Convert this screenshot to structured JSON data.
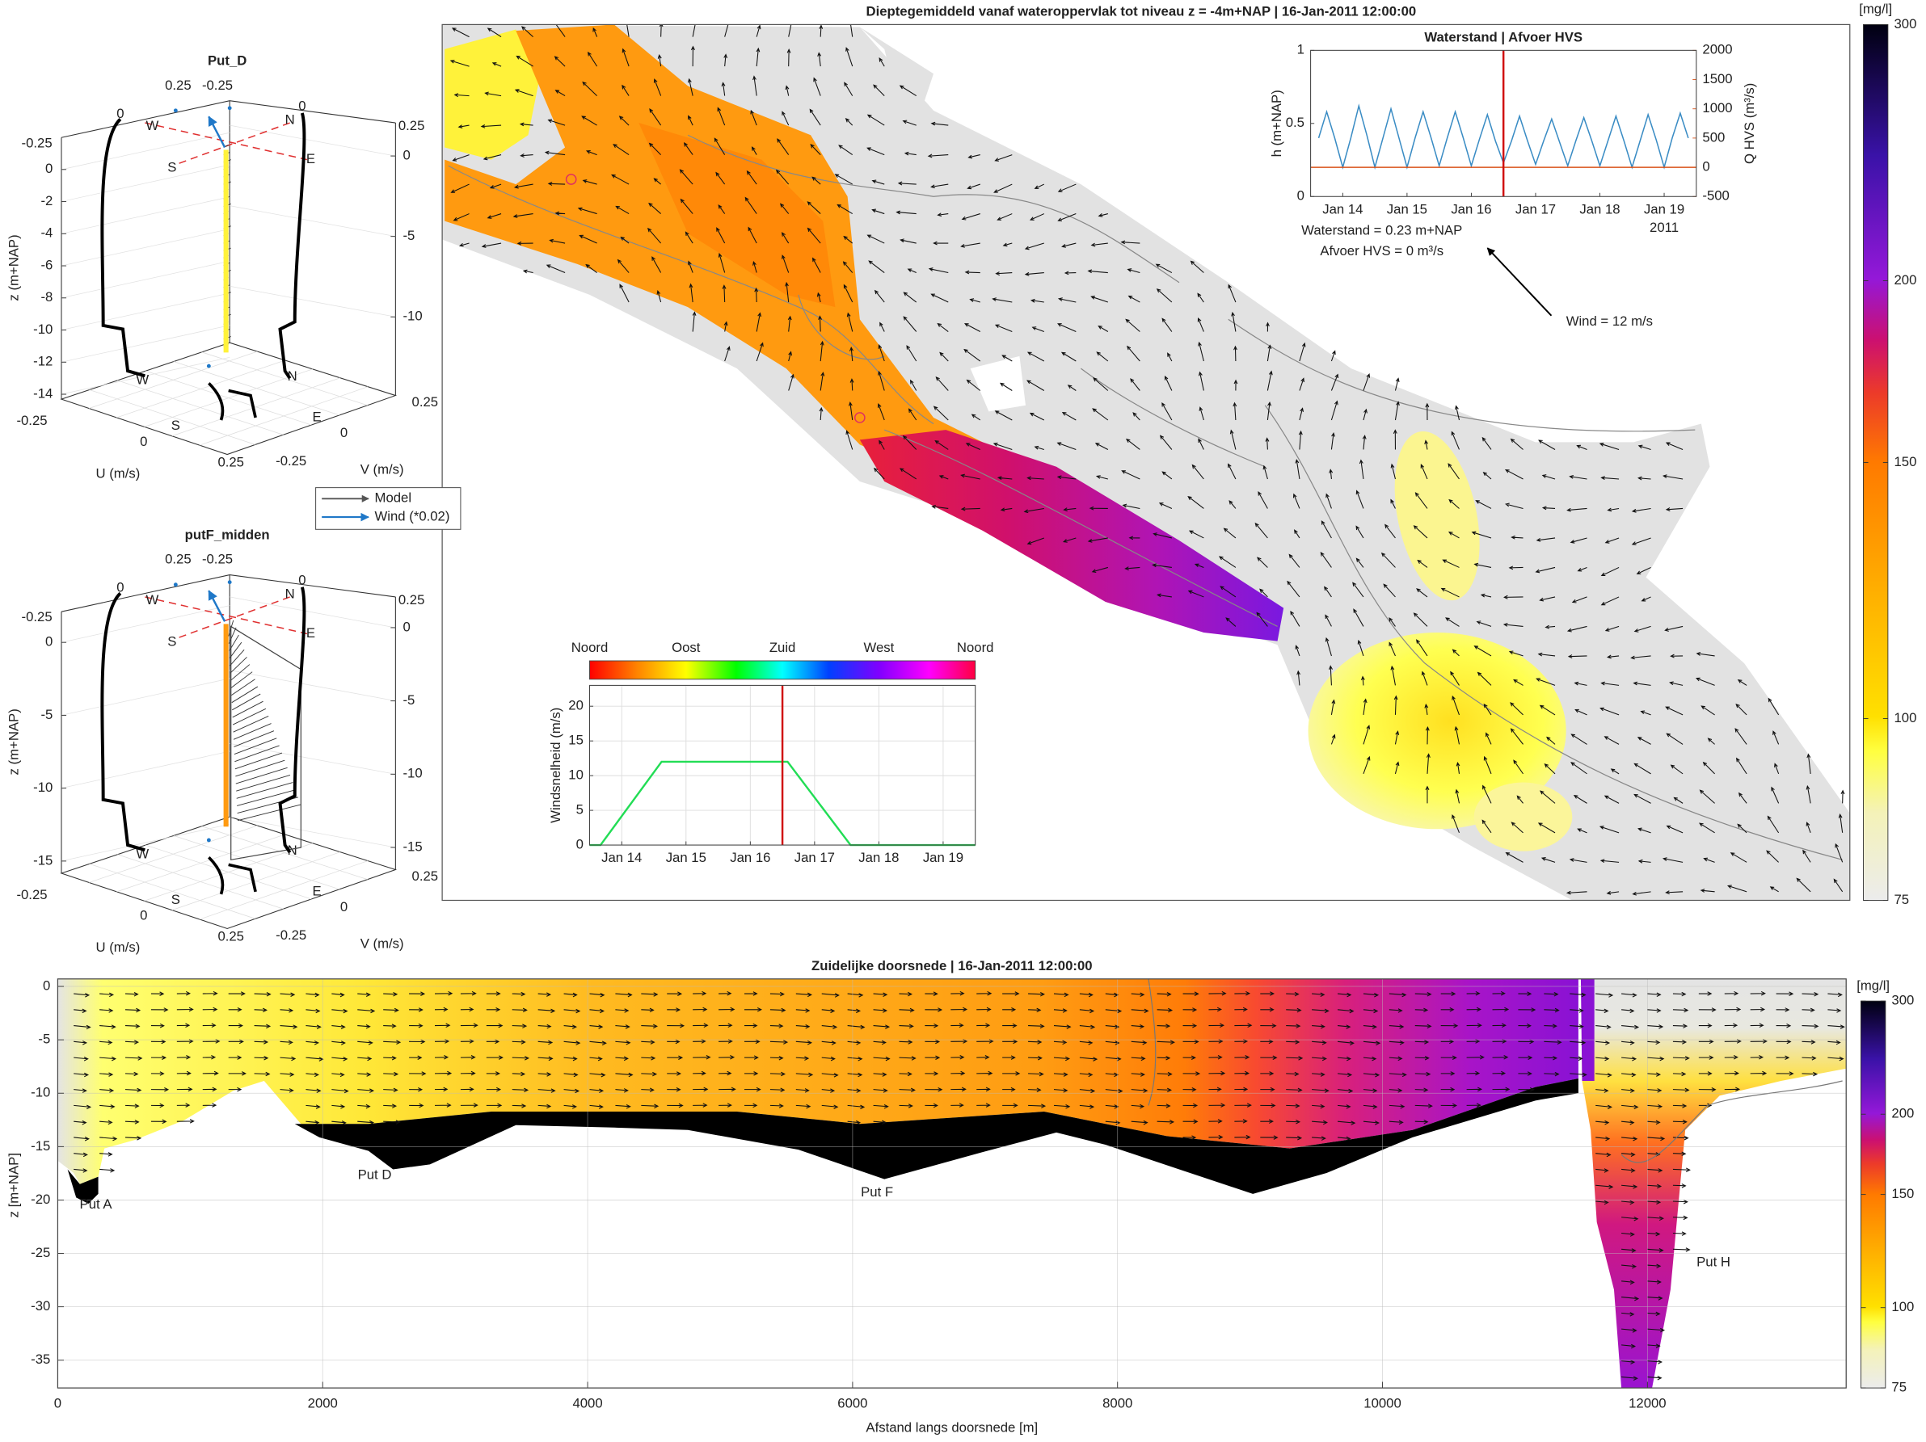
{
  "chart_data": [
    {
      "type": "heatmap",
      "title": "Dieptegemiddeld vanaf wateroppervlak tot niveau z = -4m+NAP | 16-Jan-2011 12:00:00",
      "annotation": "Wind = 12 m/s",
      "colorbar": {
        "label": "[mg/l]",
        "lim": [
          75,
          300
        ],
        "ticks": [
          75,
          100,
          150,
          200,
          300
        ],
        "log": true
      }
    },
    {
      "type": "line",
      "title": "Waterstand | Afvoer HVS",
      "ylabel": "h (m+NAP)",
      "y2label": "Q HVS (m³/s)",
      "xlim": [
        13.5,
        19.5
      ],
      "xticks": [
        {
          "value": 14,
          "label": "Jan 14"
        },
        {
          "value": 15,
          "label": "Jan 15"
        },
        {
          "value": 16,
          "label": "Jan 16"
        },
        {
          "value": 17,
          "label": "Jan 17"
        },
        {
          "value": 18,
          "label": "Jan 18"
        },
        {
          "value": 19,
          "label": "Jan 19"
        }
      ],
      "xtick_year": "2011",
      "ylim": [
        0,
        1
      ],
      "yticks": [
        0,
        0.5,
        1
      ],
      "y2lim": [
        -500,
        2000
      ],
      "y2ticks": [
        -500,
        0,
        500,
        1000,
        1500,
        2000
      ],
      "current_x": 16.5,
      "series": [
        {
          "color": "#3a8cc4",
          "x": [
            13.625,
            13.75,
            13.875,
            14.0,
            14.125,
            14.25,
            14.375,
            14.5,
            14.625,
            14.75,
            14.875,
            15.0,
            15.125,
            15.25,
            15.375,
            15.5,
            15.625,
            15.75,
            15.875,
            16.0,
            16.125,
            16.25,
            16.375,
            16.5,
            16.625,
            16.75,
            16.875,
            17.0,
            17.125,
            17.25,
            17.375,
            17.5,
            17.625,
            17.75,
            17.875,
            18.0,
            18.125,
            18.25,
            18.375,
            18.5,
            18.625,
            18.75,
            18.875,
            19.0,
            19.125,
            19.25,
            19.375
          ],
          "values": [
            0.4,
            0.58,
            0.4,
            0.2,
            0.4,
            0.62,
            0.42,
            0.2,
            0.4,
            0.6,
            0.4,
            0.2,
            0.4,
            0.58,
            0.4,
            0.21,
            0.4,
            0.58,
            0.4,
            0.21,
            0.39,
            0.56,
            0.38,
            0.23,
            0.38,
            0.55,
            0.38,
            0.22,
            0.38,
            0.53,
            0.37,
            0.21,
            0.38,
            0.54,
            0.38,
            0.21,
            0.38,
            0.55,
            0.38,
            0.2,
            0.38,
            0.56,
            0.39,
            0.2,
            0.4,
            0.57,
            0.4
          ]
        },
        {
          "color": "#d95319",
          "axis": "y2",
          "x": [
            13.5,
            19.5
          ],
          "values": [
            0,
            0
          ]
        }
      ],
      "annotations": [
        "Waterstand = 0.23 m+NAP",
        "Afvoer HVS = 0 m³/s"
      ]
    },
    {
      "type": "line",
      "ylabel": "Windsnelheid (m/s)",
      "direction_labels": [
        "Noord",
        "Oost",
        "Zuid",
        "West",
        "Noord"
      ],
      "xlim": [
        13.5,
        19.5
      ],
      "xticks": [
        {
          "value": 14,
          "label": "Jan 14"
        },
        {
          "value": 15,
          "label": "Jan 15"
        },
        {
          "value": 16,
          "label": "Jan 16"
        },
        {
          "value": 17,
          "label": "Jan 17"
        },
        {
          "value": 18,
          "label": "Jan 18"
        },
        {
          "value": 19,
          "label": "Jan 19"
        }
      ],
      "ylim": [
        0,
        23
      ],
      "yticks": [
        0,
        5,
        10,
        15,
        20
      ],
      "grid": true,
      "current_x": 16.5,
      "series": [
        {
          "color": "#22dd55",
          "x": [
            13.5,
            13.67,
            14.62,
            16.58,
            17.56,
            19.5
          ],
          "values": [
            0,
            0,
            12,
            12,
            0,
            0
          ]
        }
      ]
    },
    {
      "type": "line3d",
      "title": "Put_D",
      "xlabel": "U (m/s)",
      "ylabel": "V (m/s)",
      "zlabel": "z (m+NAP)",
      "uticks": [
        -0.25,
        0,
        0.25
      ],
      "vticks": [
        -0.25,
        0,
        0.25
      ],
      "zticks": [
        0,
        -2,
        -4,
        -6,
        -8,
        -10,
        -12,
        -14
      ],
      "z2ticks": [
        0,
        -5,
        -10
      ],
      "compass": [
        "W",
        "N",
        "E",
        "S"
      ]
    },
    {
      "type": "line3d",
      "title": "putF_midden",
      "xlabel": "U (m/s)",
      "ylabel": "V (m/s)",
      "zlabel": "z (m+NAP)",
      "uticks": [
        -0.25,
        0,
        0.25
      ],
      "vticks": [
        -0.25,
        0,
        0.25
      ],
      "zticks": [
        0,
        -5,
        -10,
        -15
      ],
      "z2ticks": [
        0,
        -5,
        -10,
        -15
      ],
      "compass": [
        "W",
        "N",
        "E",
        "S"
      ]
    },
    {
      "type": "heatmap",
      "title": "Zuidelijke doorsnede | 16-Jan-2011 12:00:00",
      "xlabel": "Afstand langs doorsnede [m]",
      "ylabel": "z [m+NAP]",
      "xlim": [
        0,
        13500
      ],
      "xticks": [
        0,
        2000,
        4000,
        6000,
        8000,
        10000,
        12000
      ],
      "ylim": [
        -37.6,
        0.7
      ],
      "yticks": [
        0,
        -5,
        -10,
        -15,
        -20,
        -25,
        -30,
        -35
      ],
      "grid": true,
      "annotations": [
        "Put A",
        "Put D",
        "Put F",
        "Put H"
      ],
      "colorbar": {
        "label": "[mg/l]",
        "lim": [
          75,
          300
        ],
        "ticks": [
          75,
          100,
          150,
          200,
          300
        ],
        "log": true
      }
    }
  ],
  "legend": {
    "items": [
      "Model",
      "Wind (*0.02)"
    ]
  }
}
